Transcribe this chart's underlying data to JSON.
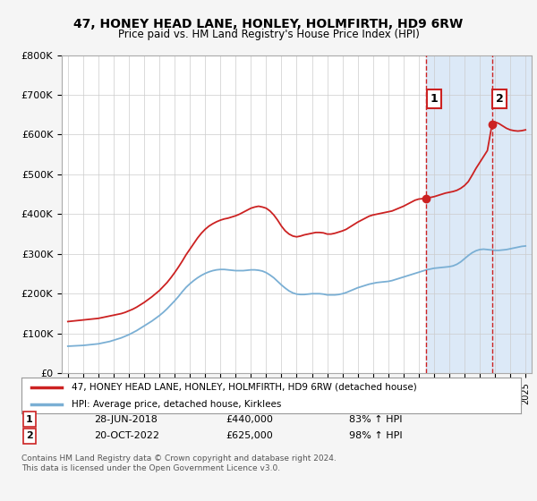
{
  "title": "47, HONEY HEAD LANE, HONLEY, HOLMFIRTH, HD9 6RW",
  "subtitle": "Price paid vs. HM Land Registry's House Price Index (HPI)",
  "ylim": [
    0,
    800000
  ],
  "yticks": [
    0,
    100000,
    200000,
    300000,
    400000,
    500000,
    600000,
    700000,
    800000
  ],
  "ytick_labels": [
    "£0",
    "£100K",
    "£200K",
    "£300K",
    "£400K",
    "£500K",
    "£600K",
    "£700K",
    "£800K"
  ],
  "xlim_start": 1994.6,
  "xlim_end": 2025.4,
  "fig_bg": "#f5f5f5",
  "plot_bg": "#ffffff",
  "shade_color": "#dce9f7",
  "red_line_color": "#cc2222",
  "blue_line_color": "#7aafd4",
  "legend_label_red": "47, HONEY HEAD LANE, HONLEY, HOLMFIRTH, HD9 6RW (detached house)",
  "legend_label_blue": "HPI: Average price, detached house, Kirklees",
  "sale1_date": "28-JUN-2018",
  "sale1_price": "£440,000",
  "sale1_hpi": "83% ↑ HPI",
  "sale1_x": 2018.5,
  "sale1_y": 440000,
  "sale2_date": "20-OCT-2022",
  "sale2_price": "£625,000",
  "sale2_hpi": "98% ↑ HPI",
  "sale2_x": 2022.8,
  "sale2_y": 625000,
  "footer": "Contains HM Land Registry data © Crown copyright and database right 2024.\nThis data is licensed under the Open Government Licence v3.0.",
  "red_x": [
    1995.0,
    1995.25,
    1995.5,
    1995.75,
    1996.0,
    1996.25,
    1996.5,
    1996.75,
    1997.0,
    1997.25,
    1997.5,
    1997.75,
    1998.0,
    1998.25,
    1998.5,
    1998.75,
    1999.0,
    1999.25,
    1999.5,
    1999.75,
    2000.0,
    2000.25,
    2000.5,
    2000.75,
    2001.0,
    2001.25,
    2001.5,
    2001.75,
    2002.0,
    2002.25,
    2002.5,
    2002.75,
    2003.0,
    2003.25,
    2003.5,
    2003.75,
    2004.0,
    2004.25,
    2004.5,
    2004.75,
    2005.0,
    2005.25,
    2005.5,
    2005.75,
    2006.0,
    2006.25,
    2006.5,
    2006.75,
    2007.0,
    2007.25,
    2007.5,
    2007.75,
    2008.0,
    2008.25,
    2008.5,
    2008.75,
    2009.0,
    2009.25,
    2009.5,
    2009.75,
    2010.0,
    2010.25,
    2010.5,
    2010.75,
    2011.0,
    2011.25,
    2011.5,
    2011.75,
    2012.0,
    2012.25,
    2012.5,
    2012.75,
    2013.0,
    2013.25,
    2013.5,
    2013.75,
    2014.0,
    2014.25,
    2014.5,
    2014.75,
    2015.0,
    2015.25,
    2015.5,
    2015.75,
    2016.0,
    2016.25,
    2016.5,
    2016.75,
    2017.0,
    2017.25,
    2017.5,
    2017.75,
    2018.0,
    2018.25,
    2018.5,
    2018.5,
    2018.75,
    2019.0,
    2019.25,
    2019.5,
    2019.75,
    2020.0,
    2020.25,
    2020.5,
    2020.75,
    2021.0,
    2021.25,
    2021.5,
    2021.75,
    2022.0,
    2022.25,
    2022.5,
    2022.8,
    2022.8,
    2023.0,
    2023.25,
    2023.5,
    2023.75,
    2024.0,
    2024.25,
    2024.5,
    2024.75,
    2025.0
  ],
  "red_y": [
    130000,
    131000,
    132000,
    133000,
    134000,
    135000,
    136000,
    137000,
    138000,
    140000,
    142000,
    144000,
    146000,
    148000,
    150000,
    153000,
    157000,
    161000,
    166000,
    172000,
    178000,
    185000,
    192000,
    200000,
    208000,
    218000,
    228000,
    240000,
    253000,
    267000,
    282000,
    298000,
    312000,
    326000,
    340000,
    352000,
    362000,
    370000,
    376000,
    381000,
    385000,
    388000,
    390000,
    393000,
    396000,
    400000,
    405000,
    410000,
    415000,
    418000,
    420000,
    418000,
    415000,
    408000,
    398000,
    385000,
    370000,
    358000,
    350000,
    345000,
    343000,
    345000,
    348000,
    350000,
    352000,
    354000,
    354000,
    353000,
    350000,
    350000,
    352000,
    355000,
    358000,
    362000,
    368000,
    374000,
    380000,
    385000,
    390000,
    395000,
    398000,
    400000,
    402000,
    404000,
    406000,
    408000,
    412000,
    416000,
    420000,
    425000,
    430000,
    435000,
    438000,
    439000,
    440000,
    440000,
    442000,
    444000,
    447000,
    450000,
    453000,
    455000,
    457000,
    460000,
    465000,
    472000,
    482000,
    498000,
    515000,
    530000,
    545000,
    560000,
    625000,
    625000,
    632000,
    628000,
    622000,
    616000,
    612000,
    610000,
    609000,
    610000,
    612000
  ],
  "blue_x": [
    1995.0,
    1995.25,
    1995.5,
    1995.75,
    1996.0,
    1996.25,
    1996.5,
    1996.75,
    1997.0,
    1997.25,
    1997.5,
    1997.75,
    1998.0,
    1998.25,
    1998.5,
    1998.75,
    1999.0,
    1999.25,
    1999.5,
    1999.75,
    2000.0,
    2000.25,
    2000.5,
    2000.75,
    2001.0,
    2001.25,
    2001.5,
    2001.75,
    2002.0,
    2002.25,
    2002.5,
    2002.75,
    2003.0,
    2003.25,
    2003.5,
    2003.75,
    2004.0,
    2004.25,
    2004.5,
    2004.75,
    2005.0,
    2005.25,
    2005.5,
    2005.75,
    2006.0,
    2006.25,
    2006.5,
    2006.75,
    2007.0,
    2007.25,
    2007.5,
    2007.75,
    2008.0,
    2008.25,
    2008.5,
    2008.75,
    2009.0,
    2009.25,
    2009.5,
    2009.75,
    2010.0,
    2010.25,
    2010.5,
    2010.75,
    2011.0,
    2011.25,
    2011.5,
    2011.75,
    2012.0,
    2012.25,
    2012.5,
    2012.75,
    2013.0,
    2013.25,
    2013.5,
    2013.75,
    2014.0,
    2014.25,
    2014.5,
    2014.75,
    2015.0,
    2015.25,
    2015.5,
    2015.75,
    2016.0,
    2016.25,
    2016.5,
    2016.75,
    2017.0,
    2017.25,
    2017.5,
    2017.75,
    2018.0,
    2018.25,
    2018.5,
    2018.75,
    2019.0,
    2019.25,
    2019.5,
    2019.75,
    2020.0,
    2020.25,
    2020.5,
    2020.75,
    2021.0,
    2021.25,
    2021.5,
    2021.75,
    2022.0,
    2022.25,
    2022.5,
    2022.75,
    2023.0,
    2023.25,
    2023.5,
    2023.75,
    2024.0,
    2024.25,
    2024.5,
    2024.75,
    2025.0
  ],
  "blue_y": [
    68000,
    68500,
    69000,
    69500,
    70000,
    71000,
    72000,
    73000,
    74000,
    76000,
    78000,
    80000,
    83000,
    86000,
    89000,
    93000,
    97000,
    102000,
    107000,
    113000,
    119000,
    125000,
    131000,
    138000,
    145000,
    153000,
    162000,
    172000,
    182000,
    193000,
    205000,
    216000,
    225000,
    233000,
    240000,
    246000,
    251000,
    255000,
    258000,
    260000,
    261000,
    261000,
    260000,
    259000,
    258000,
    258000,
    258000,
    259000,
    260000,
    260000,
    259000,
    257000,
    253000,
    247000,
    240000,
    231000,
    222000,
    214000,
    207000,
    202000,
    199000,
    198000,
    198000,
    199000,
    200000,
    200000,
    200000,
    199000,
    197000,
    197000,
    197000,
    198000,
    200000,
    203000,
    207000,
    211000,
    215000,
    218000,
    221000,
    224000,
    226000,
    228000,
    229000,
    230000,
    231000,
    233000,
    236000,
    239000,
    242000,
    245000,
    248000,
    251000,
    254000,
    257000,
    260000,
    262000,
    264000,
    265000,
    266000,
    267000,
    268000,
    270000,
    274000,
    280000,
    288000,
    296000,
    303000,
    308000,
    311000,
    312000,
    311000,
    310000,
    309000,
    309000,
    310000,
    311000,
    313000,
    315000,
    317000,
    319000,
    320000
  ]
}
